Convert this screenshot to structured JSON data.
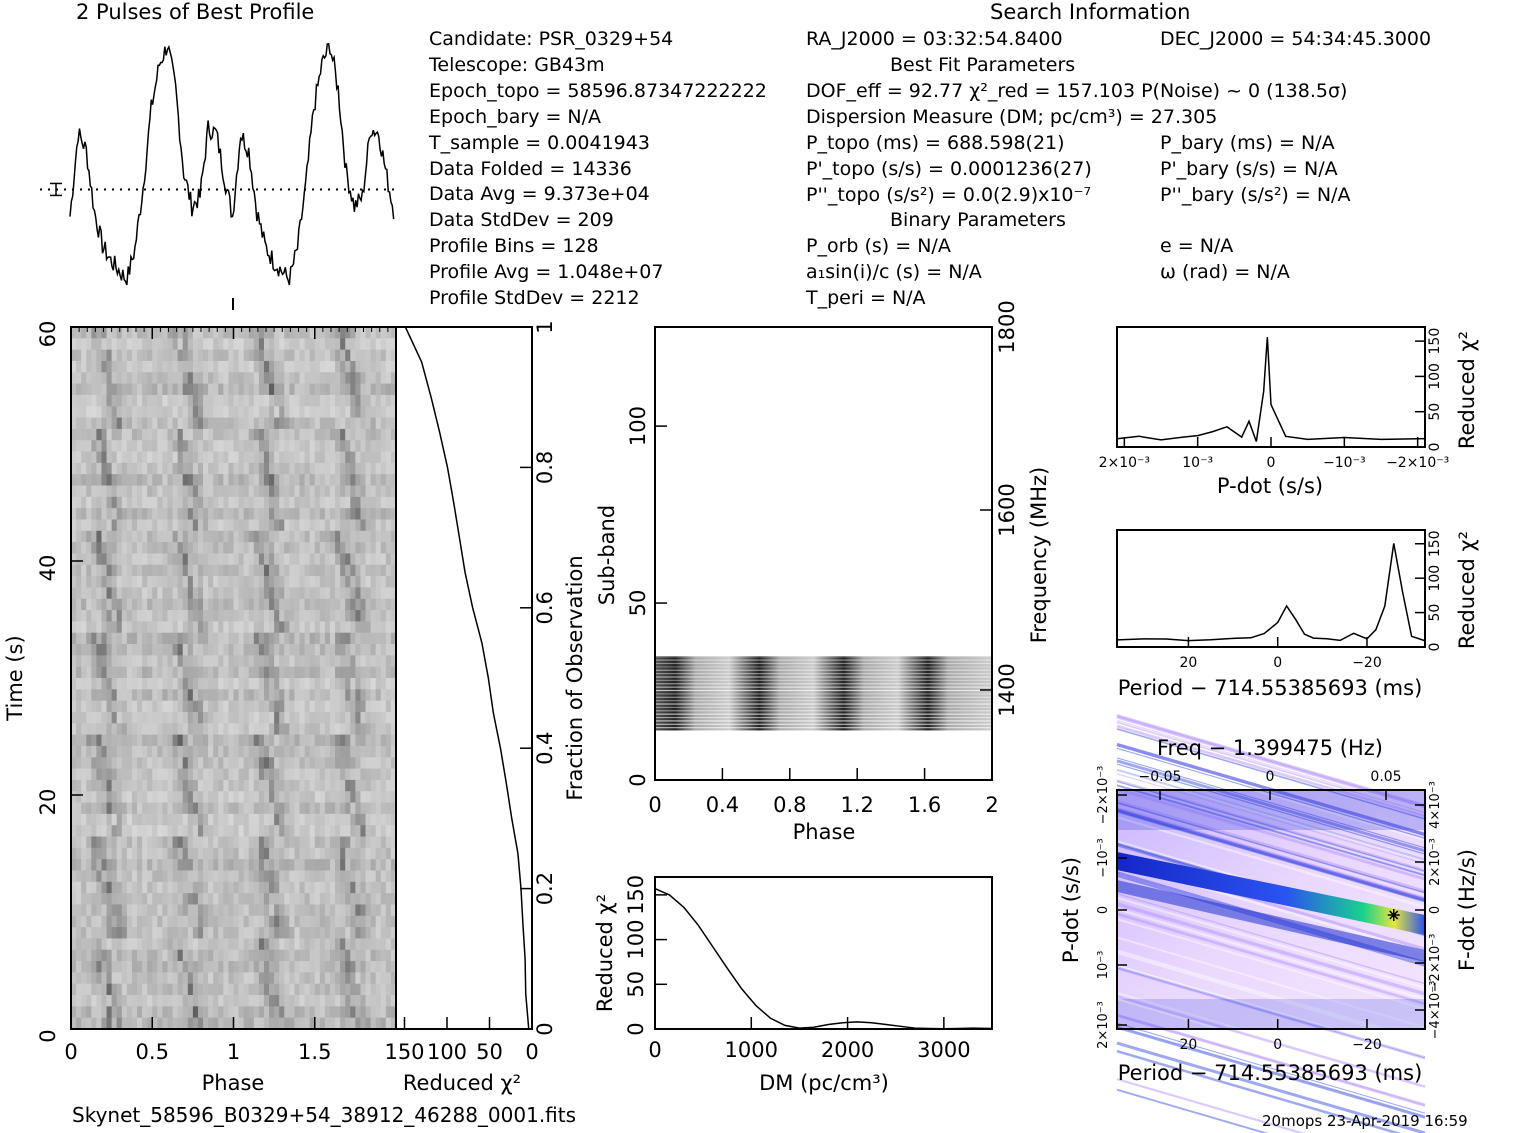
{
  "header": {
    "profile_title": "2 Pulses of Best Profile",
    "search_title": "Search Information",
    "best_fit_title": "Best Fit Parameters",
    "binary_title": "Binary Parameters"
  },
  "info_col1": [
    "Candidate:  PSR_0329+54",
    "Telescope:  GB43m",
    "Epoch_topo = 58596.87347222222",
    "Epoch_bary = N/A",
    "T_sample       =   0.0041943",
    "Data Folded    =   14336",
    "Data Avg       =   9.373e+04",
    "Data StdDev    =   209",
    "Profile Bins   =   128",
    "Profile Avg    =   1.048e+07",
    "Profile StdDev =   2212"
  ],
  "info_col2": {
    "ra": "RA_J2000 = 03:32:54.8400",
    "dof": "DOF_eff = 92.77  χ²_red = 157.103  P(Noise) ~ 0    (138.5σ)",
    "dm": "Dispersion Measure (DM; pc/cm³) = 27.305",
    "p_topo": "P_topo (ms) =  688.598(21)",
    "pd_topo": "P'_topo (s/s) =  0.0001236(27)",
    "pdd_topo": "P''_topo (s/s²) = 0.0(2.9)x10⁻⁷",
    "porb": "P_orb (s) = N/A",
    "a1": "a₁sin(i)/c (s) = N/A",
    "tperi": "T_peri = N/A"
  },
  "info_col3": {
    "dec": "DEC_J2000 = 54:34:45.3000",
    "p_bary": "P_bary (ms) = N/A",
    "pd_bary": "P'_bary (s/s) = N/A",
    "pdd_bary": "P''_bary (s/s²) = N/A",
    "e": "e = N/A",
    "omega": "ω (rad) = N/A"
  },
  "footer": {
    "filename": "Skynet_58596_B0329+54_38912_46288_0001.fits",
    "stamp": "20mops 23-Apr-2019 16:59"
  },
  "colors": {
    "ink": "#000000",
    "gray": "#888888",
    "blue": "#1a2cd8",
    "pale": "#e8d0ff",
    "green": "#12e08a",
    "yellow": "#e6e62a"
  },
  "chart_data": [
    {
      "id": "profile",
      "type": "line",
      "title": "2 Pulses of Best Profile",
      "x": [
        0,
        0.05,
        0.1,
        0.15,
        0.2,
        0.25,
        0.3,
        0.35,
        0.4,
        0.45,
        0.5,
        0.55,
        0.6,
        0.65,
        0.7,
        0.75,
        0.8,
        0.85,
        0.9,
        0.95,
        1.0,
        1.05,
        1.1,
        1.15,
        1.2,
        1.25,
        1.3,
        1.35,
        1.4,
        1.45,
        1.5,
        1.55,
        1.6,
        1.65,
        1.7,
        1.75,
        1.8,
        1.85,
        1.9,
        1.95,
        2.0
      ],
      "values": [
        0.28,
        0.62,
        0.55,
        0.3,
        0.16,
        0.1,
        0.06,
        0.02,
        0.15,
        0.4,
        0.72,
        0.9,
        0.98,
        0.8,
        0.46,
        0.32,
        0.36,
        0.64,
        0.62,
        0.44,
        0.28,
        0.62,
        0.55,
        0.3,
        0.16,
        0.1,
        0.06,
        0.02,
        0.15,
        0.4,
        0.72,
        0.9,
        0.98,
        0.8,
        0.46,
        0.32,
        0.36,
        0.64,
        0.62,
        0.44,
        0.28
      ],
      "mean_line": 0.39,
      "error_bar_label": "I"
    },
    {
      "id": "time_phase",
      "type": "heatmap",
      "xlabel": "Phase",
      "ylabel": "Time (s)",
      "xticks": [
        "0",
        "0.5",
        "1",
        "1.5"
      ],
      "yticks": [
        "0",
        "20",
        "40",
        "60"
      ],
      "xlim": [
        0,
        2
      ],
      "ylim": [
        0,
        60
      ]
    },
    {
      "id": "chi_vs_fraction",
      "type": "line",
      "xlabel": "Reduced χ²",
      "ylabel": "Fraction of Observation",
      "xticks": [
        "150",
        "100",
        "50",
        "0"
      ],
      "yticks": [
        "0",
        "0.2",
        "0.4",
        "0.6",
        "0.8",
        "1"
      ],
      "xlim": [
        160,
        0
      ],
      "fraction": [
        0,
        0.05,
        0.1,
        0.15,
        0.2,
        0.25,
        0.3,
        0.35,
        0.4,
        0.45,
        0.5,
        0.55,
        0.6,
        0.65,
        0.7,
        0.75,
        0.8,
        0.85,
        0.9,
        0.95,
        1.0
      ],
      "chi2": [
        4,
        7,
        9,
        11,
        14,
        18,
        23,
        30,
        36,
        44,
        52,
        60,
        70,
        78,
        86,
        92,
        100,
        108,
        118,
        130,
        148
      ]
    },
    {
      "id": "subband_phase",
      "type": "heatmap",
      "xlabel": "Phase",
      "ylabel": "Sub-band",
      "y2label": "Frequency (MHz)",
      "xticks": [
        "0",
        "0.4",
        "0.8",
        "1.2",
        "1.6",
        "2"
      ],
      "yticks": [
        "0",
        "50",
        "100"
      ],
      "y2ticks": [
        "1400",
        "1600",
        "1800"
      ],
      "xlim": [
        0,
        2
      ],
      "ylim": [
        0,
        128
      ],
      "active_subbands": [
        14,
        35
      ],
      "pulse_phases": [
        0.12,
        0.62,
        1.12,
        1.62
      ]
    },
    {
      "id": "dm_chi",
      "type": "line",
      "xlabel": "DM (pc/cm³)",
      "ylabel": "Reduced χ²",
      "xticks": [
        "0",
        "1000",
        "2000",
        "3000"
      ],
      "yticks": [
        "0",
        "50",
        "100",
        "150"
      ],
      "xlim": [
        0,
        3500
      ],
      "ylim": [
        0,
        170
      ],
      "x": [
        0,
        150,
        300,
        450,
        600,
        750,
        900,
        1050,
        1200,
        1350,
        1500,
        1650,
        1800,
        1950,
        2100,
        2250,
        2400,
        2550,
        2700,
        2850,
        3000,
        3150,
        3300,
        3500
      ],
      "values": [
        157,
        150,
        136,
        116,
        92,
        68,
        45,
        26,
        12,
        4,
        1,
        2,
        5,
        7,
        8,
        7,
        5,
        3,
        1,
        0.5,
        0.3,
        0.5,
        1,
        0.5
      ]
    },
    {
      "id": "pdot_chi",
      "type": "line",
      "xlabel": "P-dot (s/s)",
      "ylabel": "Reduced χ²",
      "xticks": [
        "2×10⁻³",
        "10⁻³",
        "0",
        "−10⁻³",
        "−2×10⁻³"
      ],
      "yticks": [
        "0",
        "50",
        "100",
        "150"
      ],
      "xlim": [
        0.0021,
        -0.0021
      ],
      "ylim": [
        0,
        170
      ],
      "x": [
        0.0021,
        0.0018,
        0.0015,
        0.0012,
        0.001,
        0.0008,
        0.0006,
        0.0004,
        0.0003,
        0.0002,
        0.0001,
        5e-05,
        0.0,
        -0.0002,
        -0.0005,
        -0.001,
        -0.0015,
        -0.0021
      ],
      "values": [
        12,
        14,
        10,
        13,
        16,
        22,
        30,
        15,
        35,
        8,
        80,
        155,
        60,
        14,
        12,
        13,
        10,
        12
      ]
    },
    {
      "id": "period_chi",
      "type": "line",
      "xlabel": "Period − 714.55385693 (ms)",
      "ylabel": "Reduced χ²",
      "xticks": [
        "20",
        "0",
        "−20"
      ],
      "yticks": [
        "0",
        "50",
        "100",
        "150"
      ],
      "xlim": [
        36,
        -33
      ],
      "ylim": [
        0,
        170
      ],
      "x": [
        36,
        30,
        25,
        20,
        15,
        10,
        6,
        3,
        0,
        -2,
        -4,
        -6,
        -8,
        -11,
        -14,
        -17,
        -20,
        -22,
        -24,
        -26,
        -28,
        -30,
        -33
      ],
      "values": [
        10,
        11,
        12,
        10,
        11,
        12,
        14,
        20,
        35,
        60,
        40,
        18,
        12,
        12,
        10,
        20,
        12,
        25,
        60,
        150,
        80,
        15,
        10
      ]
    },
    {
      "id": "pp_dot_map",
      "type": "heatmap",
      "title": "Freq − 1.399475 (Hz)",
      "xlabel": "Period − 714.55385693 (ms)",
      "ylabel": "P-dot (s/s)",
      "y2label": "F-dot (Hz/s)",
      "xticks": [
        "20",
        "0",
        "−20"
      ],
      "x2ticks": [
        "−0.05",
        "0",
        "0.05"
      ],
      "yticks": [
        "2×10⁻³",
        "10⁻³",
        "0",
        "−10⁻³",
        "−2×10⁻³"
      ],
      "y2ticks": [
        "−4×10⁻³",
        "−2×10⁻³",
        "0",
        "2×10⁻³",
        "4×10⁻³"
      ],
      "best_period": -26,
      "best_pdot": 0.0
    }
  ]
}
